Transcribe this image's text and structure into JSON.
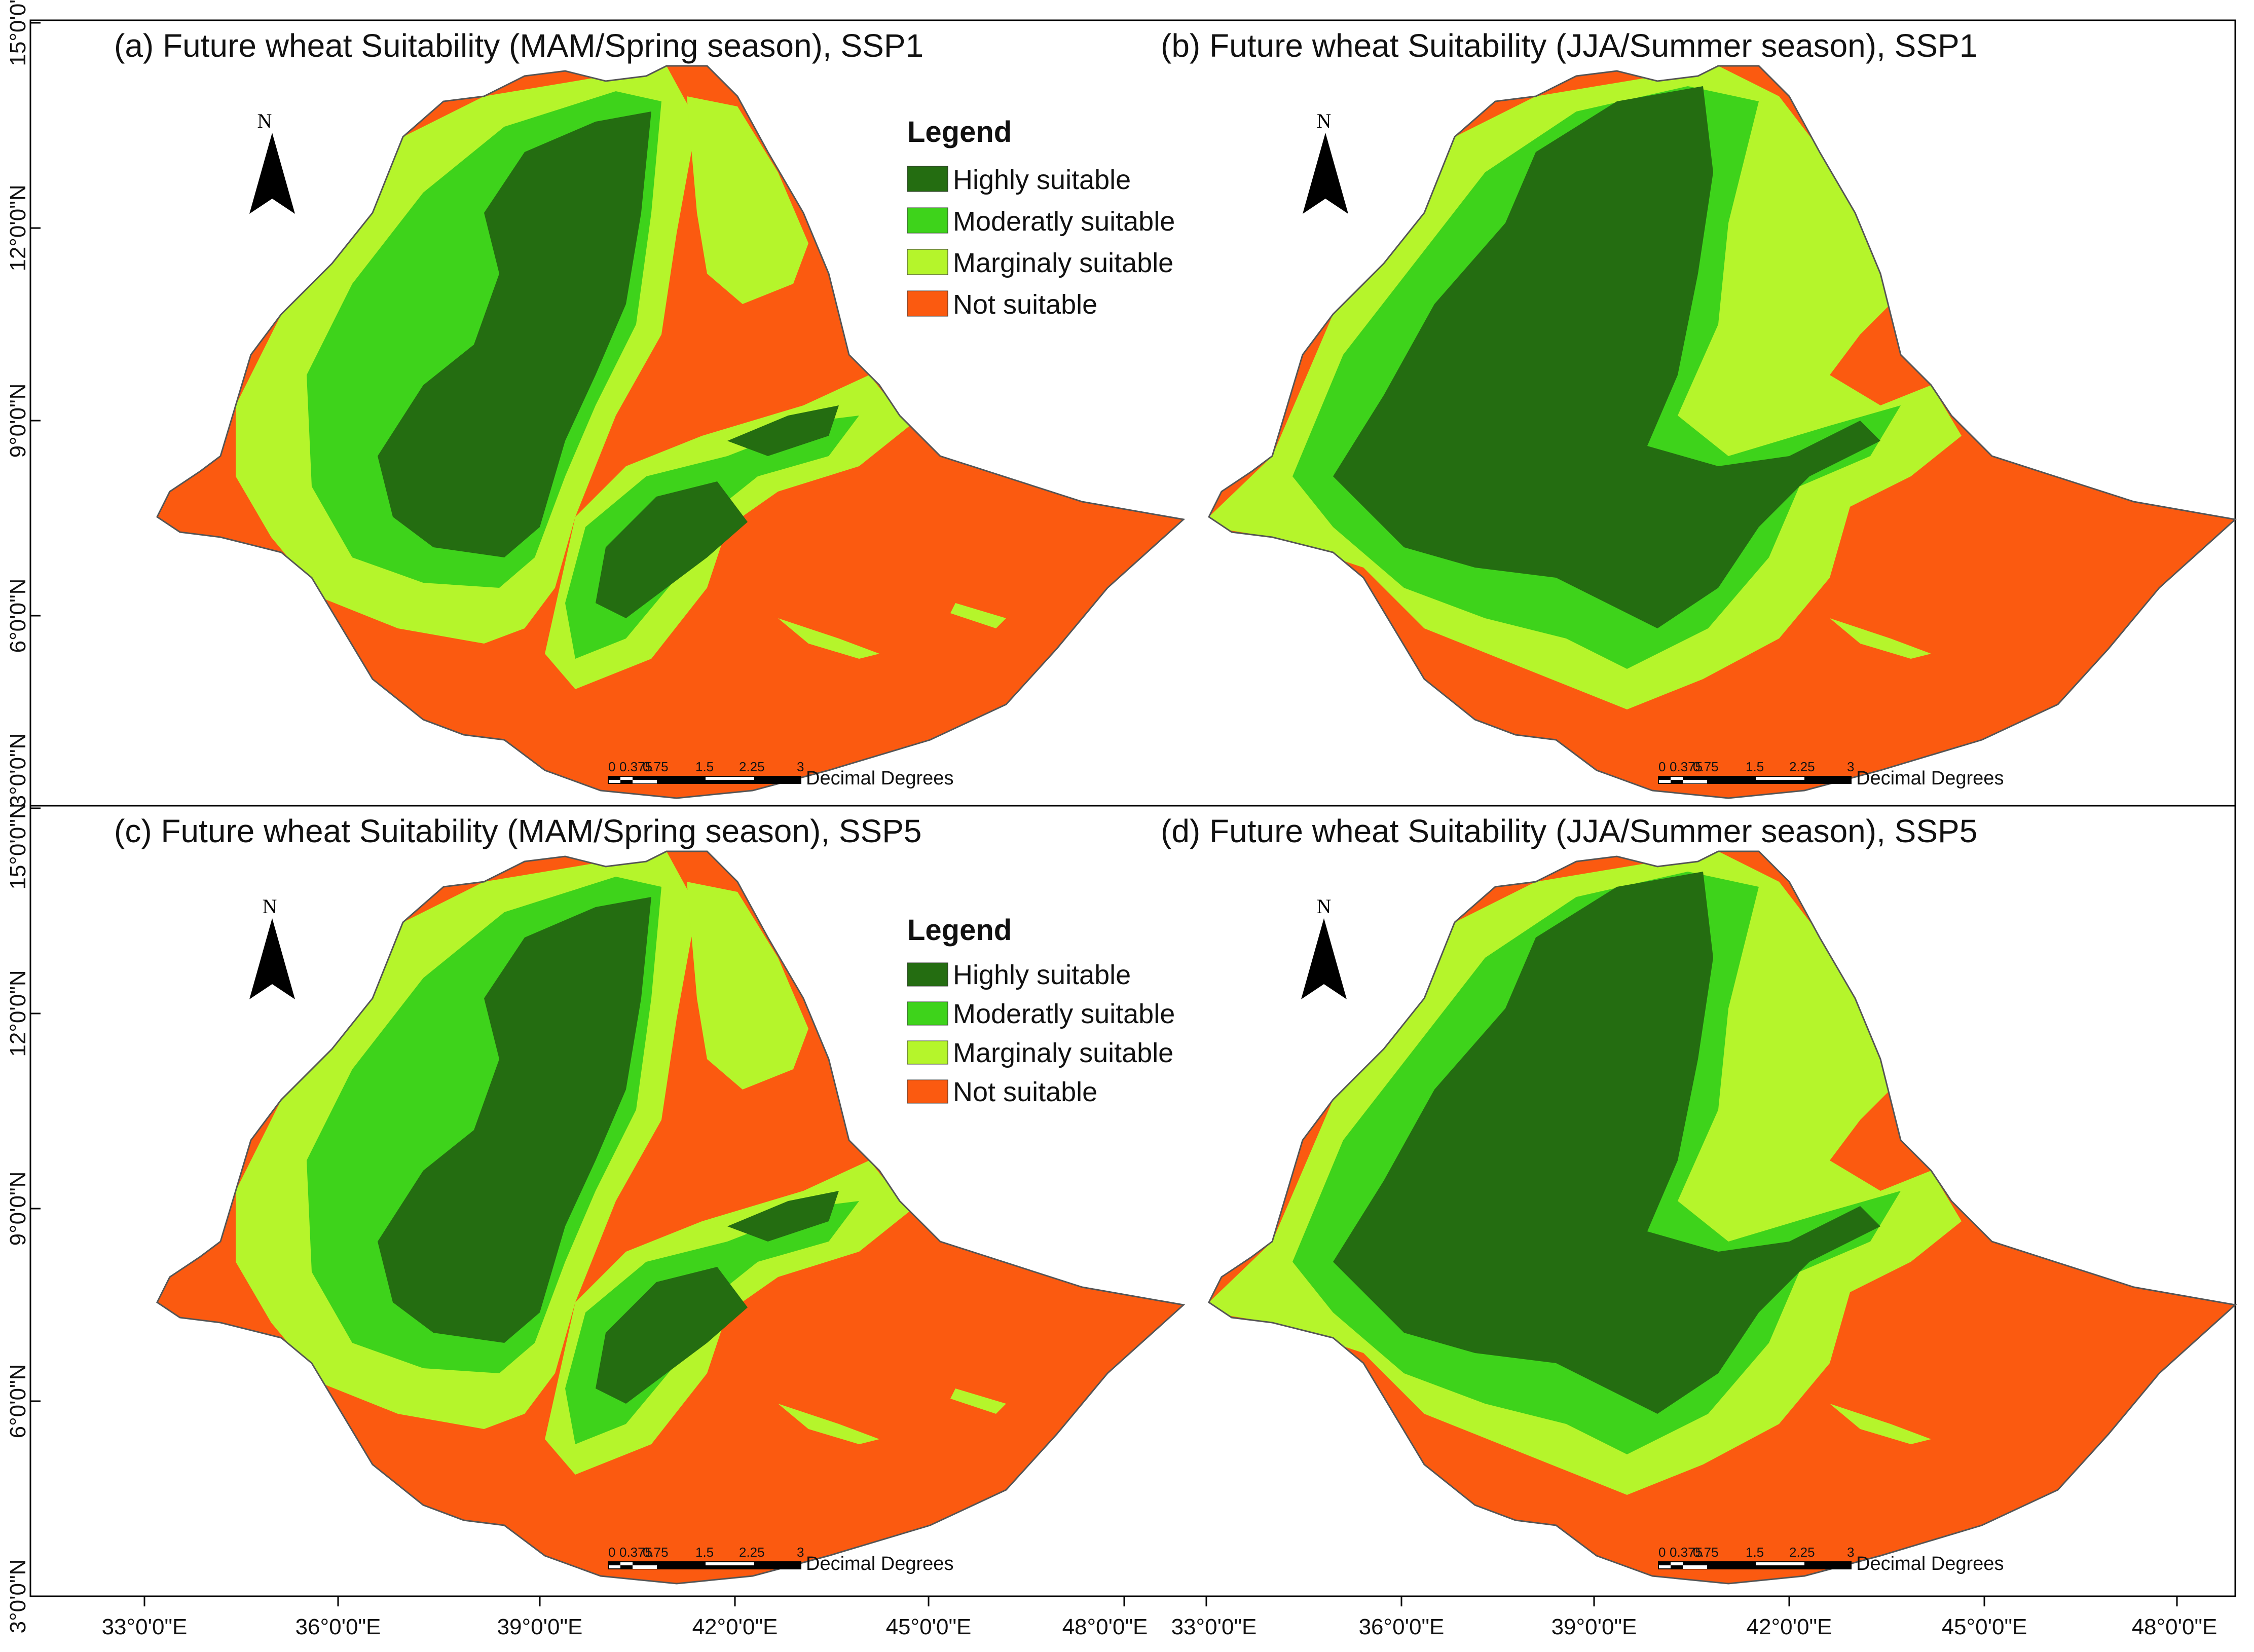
{
  "panels": [
    {
      "title": "(a) Future wheat Suitability (MAM/Spring season), SSP1"
    },
    {
      "title": "(b) Future wheat Suitability (JJA/Summer season), SSP1"
    },
    {
      "title": "(c) Future wheat Suitability (MAM/Spring season), SSP5"
    },
    {
      "title": "(d) Future wheat Suitability (JJA/Summer season), SSP5"
    }
  ],
  "legend": {
    "heading": "Legend",
    "classes": [
      {
        "label": "Highly suitable",
        "color": "#246d11"
      },
      {
        "label": "Moderatly suitable",
        "color": "#3ed31b"
      },
      {
        "label": "Marginaly suitable",
        "color": "#b5f52b"
      },
      {
        "label": "Not suitable",
        "color": "#fb5a10"
      }
    ]
  },
  "north_arrow": {
    "label": "N"
  },
  "scale_bar": {
    "ticks": [
      "0",
      "0.375",
      "0.75",
      "1.5",
      "2.25",
      "3"
    ],
    "unit": "Decimal Degrees"
  },
  "axes": {
    "y_top": [
      "15°0'0\"N",
      "12°0'0\"N",
      "9°0'0\"N",
      "6°0'0\"N"
    ],
    "y_bottom": [
      "15°0'0\"N",
      "12°0'0\"N",
      "9°0'0\"N",
      "6°0'0\"N",
      "3°0'0\"N"
    ],
    "y_mid": "3°0'0\"N",
    "x": [
      "33°0'0\"E",
      "36°0'0\"E",
      "39°0'0\"E",
      "42°0'0\"E",
      "45°0'0\"E",
      "48°0'0\"E",
      "33°0'0\"E",
      "36°0'0\"E",
      "39°0'0\"E",
      "42°0'0\"E",
      "45°0'0\"E",
      "48°0'0\"E"
    ]
  }
}
